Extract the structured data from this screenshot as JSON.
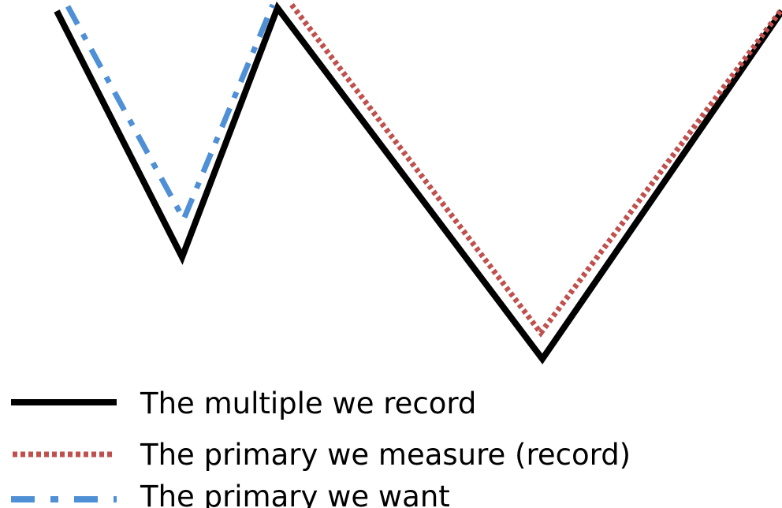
{
  "legend": {
    "items": [
      {
        "label": "The multiple we record",
        "line_style": "solid",
        "color": "#000000"
      },
      {
        "label": "The primary we measure (record)",
        "line_style": "dotted",
        "color": "#c0504d"
      },
      {
        "label": "The primary we want",
        "line_style": "dash-dot",
        "color": "#4f8fd6"
      }
    ]
  }
}
